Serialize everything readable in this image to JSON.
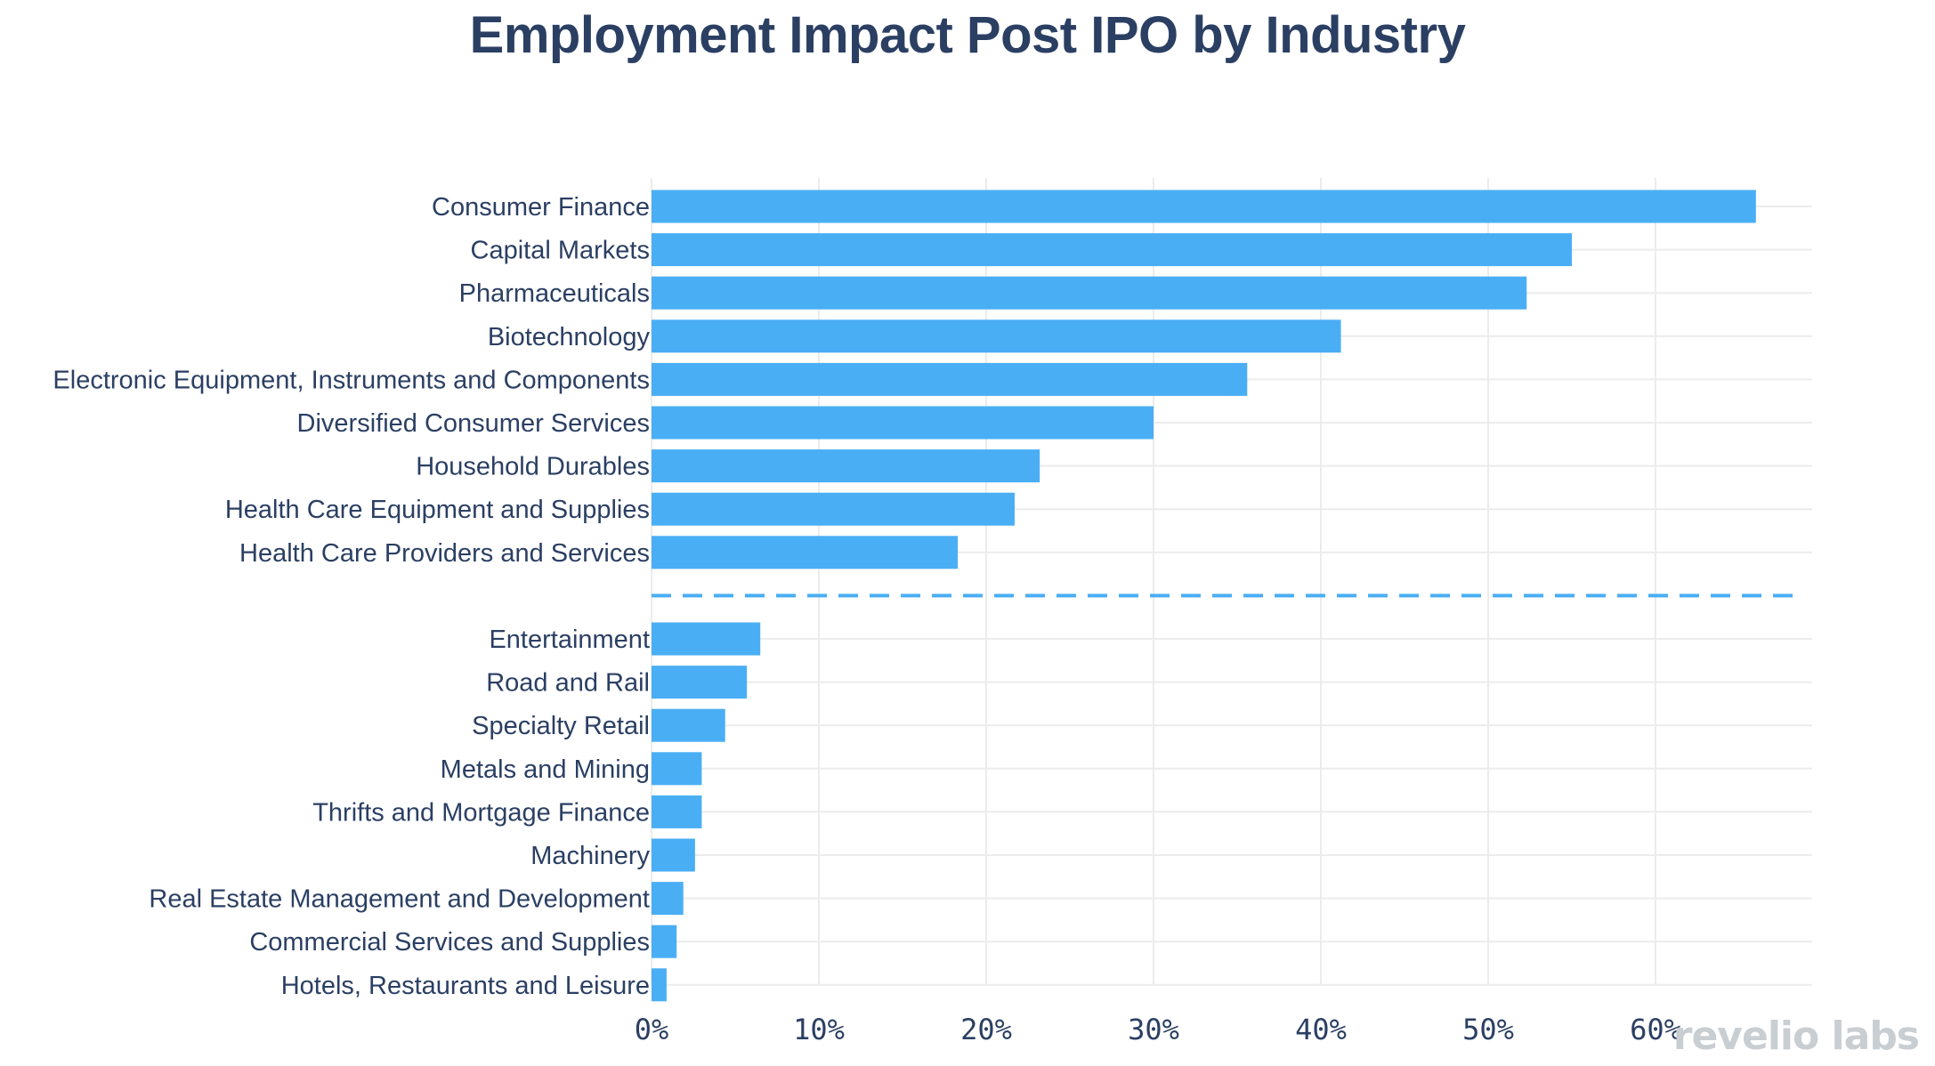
{
  "chart_data": {
    "type": "bar",
    "orientation": "horizontal",
    "title": "Employment Impact Post IPO by Industry",
    "xlabel": "",
    "ylabel": "",
    "xlim": [
      0,
      70
    ],
    "xticks": [
      0,
      10,
      20,
      30,
      40,
      50,
      60
    ],
    "tick_format": "{v}%",
    "grid": true,
    "color": "#4aaef5",
    "divider_color": "#4aaef5",
    "groups": [
      {
        "name": "top",
        "categories": [
          "Consumer Finance",
          "Capital Markets",
          "Pharmaceuticals",
          "Biotechnology",
          "Electronic Equipment, Instruments and Components",
          "Diversified Consumer Services",
          "Household Durables",
          "Health Care Equipment and Supplies",
          "Health Care Providers and Services"
        ],
        "values": [
          66,
          55,
          52.3,
          41.2,
          35.6,
          30,
          23.2,
          21.7,
          18.3
        ]
      },
      {
        "name": "bottom",
        "categories": [
          "Entertainment",
          "Road and Rail",
          "Specialty Retail",
          "Metals and Mining",
          "Thrifts and Mortgage Finance",
          "Machinery",
          "Real Estate Management and Development",
          "Commercial Services and Supplies",
          "Hotels, Restaurants and Leisure"
        ],
        "values": [
          6.5,
          5.7,
          4.4,
          3,
          3,
          2.6,
          1.9,
          1.5,
          0.9
        ]
      }
    ]
  },
  "brand": {
    "text": "revelio labs"
  }
}
